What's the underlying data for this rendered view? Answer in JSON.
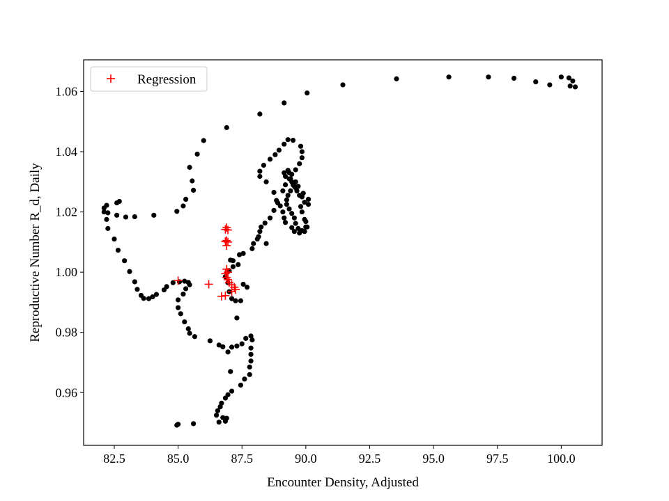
{
  "chart_data": {
    "type": "scatter",
    "title": "",
    "xlabel": "Encounter Density, Adjusted",
    "ylabel": "Reproductive Number R_d, Daily",
    "xlim": [
      81.3,
      101.6
    ],
    "ylim": [
      0.9425,
      1.0705
    ],
    "xticks": [
      82.5,
      85.0,
      87.5,
      90.0,
      92.5,
      95.0,
      97.5,
      100.0
    ],
    "xtick_labels": [
      "82.5",
      "85.0",
      "87.5",
      "90.0",
      "92.5",
      "95.0",
      "97.5",
      "100.0"
    ],
    "yticks": [
      0.96,
      0.98,
      1.0,
      1.02,
      1.04,
      1.06
    ],
    "ytick_labels": [
      "0.96",
      "0.98",
      "1.00",
      "1.02",
      "1.04",
      "1.06"
    ],
    "grid": false,
    "legend_position": "top-left",
    "series": [
      {
        "name": "",
        "marker": "dot",
        "color": "#000000",
        "points": [
          [
            100.55,
            1.0615
          ],
          [
            100.45,
            1.0635
          ],
          [
            100.3,
            1.0645
          ],
          [
            100.35,
            1.0618
          ],
          [
            100.0,
            1.0648
          ],
          [
            99.55,
            1.0622
          ],
          [
            99.0,
            1.0632
          ],
          [
            98.15,
            1.0644
          ],
          [
            97.15,
            1.0648
          ],
          [
            95.6,
            1.0648
          ],
          [
            93.55,
            1.0642
          ],
          [
            91.45,
            1.0622
          ],
          [
            90.05,
            1.0595
          ],
          [
            89.15,
            1.0562
          ],
          [
            88.2,
            1.0525
          ],
          [
            86.9,
            1.048
          ],
          [
            86.0,
            1.0437
          ],
          [
            85.75,
            1.0392
          ],
          [
            85.45,
            1.0348
          ],
          [
            85.55,
            1.0303
          ],
          [
            85.6,
            1.0272
          ],
          [
            85.3,
            1.0242
          ],
          [
            85.2,
            1.022
          ],
          [
            84.95,
            1.0202
          ],
          [
            84.05,
            1.0189
          ],
          [
            83.3,
            1.0184
          ],
          [
            82.95,
            1.0183
          ],
          [
            82.6,
            1.0189
          ],
          [
            82.25,
            1.0197
          ],
          [
            82.1,
            1.0213
          ],
          [
            82.2,
            1.0222
          ],
          [
            82.7,
            1.0235
          ],
          [
            82.6,
            1.023
          ],
          [
            82.1,
            1.02
          ],
          [
            82.2,
            1.0175
          ],
          [
            82.25,
            1.0145
          ],
          [
            82.5,
            1.011
          ],
          [
            82.65,
            1.0073
          ],
          [
            82.9,
            1.0038
          ],
          [
            83.1,
            1.0002
          ],
          [
            83.3,
            0.9968
          ],
          [
            83.4,
            0.9943
          ],
          [
            83.55,
            0.9923
          ],
          [
            83.65,
            0.9913
          ],
          [
            83.85,
            0.9912
          ],
          [
            84.0,
            0.9918
          ],
          [
            84.15,
            0.9926
          ],
          [
            84.45,
            0.9941
          ],
          [
            84.55,
            0.9952
          ],
          [
            84.8,
            0.9965
          ],
          [
            85.05,
            0.9968
          ],
          [
            85.25,
            0.997
          ],
          [
            85.4,
            0.9966
          ],
          [
            85.45,
            0.9958
          ],
          [
            85.3,
            0.9945
          ],
          [
            85.2,
            0.9927
          ],
          [
            85.0,
            0.9908
          ],
          [
            85.0,
            0.9882
          ],
          [
            85.1,
            0.9862
          ],
          [
            85.25,
            0.9835
          ],
          [
            85.4,
            0.9812
          ],
          [
            85.45,
            0.9797
          ],
          [
            85.65,
            0.9786
          ],
          [
            86.25,
            0.9772
          ],
          [
            86.6,
            0.9758
          ],
          [
            86.75,
            0.9752
          ],
          [
            87.1,
            0.9751
          ],
          [
            87.3,
            0.9755
          ],
          [
            87.5,
            0.9762
          ],
          [
            87.65,
            0.978
          ],
          [
            87.85,
            0.9788
          ],
          [
            87.9,
            0.9775
          ],
          [
            87.85,
            0.9748
          ],
          [
            87.85,
            0.9727
          ],
          [
            87.85,
            0.9705
          ],
          [
            87.8,
            0.9685
          ],
          [
            87.8,
            0.966
          ],
          [
            87.6,
            0.9645
          ],
          [
            87.45,
            0.9625
          ],
          [
            87.1,
            0.9605
          ],
          [
            86.95,
            0.9593
          ],
          [
            86.85,
            0.9582
          ],
          [
            86.7,
            0.9565
          ],
          [
            86.65,
            0.9553
          ],
          [
            86.55,
            0.954
          ],
          [
            86.5,
            0.9525
          ],
          [
            86.75,
            0.9517
          ],
          [
            86.85,
            0.9505
          ],
          [
            86.6,
            0.9502
          ],
          [
            85.6,
            0.9497
          ],
          [
            85.0,
            0.9495
          ],
          [
            84.95,
            0.9492
          ],
          [
            86.9,
            0.9515
          ],
          [
            87.05,
            0.967
          ],
          [
            86.95,
            0.9735
          ],
          [
            87.3,
            0.9848
          ],
          [
            87.45,
            0.9905
          ],
          [
            87.25,
            0.9905
          ],
          [
            87.1,
            0.9912
          ],
          [
            87.0,
            0.9935
          ],
          [
            86.95,
            0.9965
          ],
          [
            86.85,
            0.9985
          ],
          [
            87.0,
            1.0005
          ],
          [
            87.15,
            1.0018
          ],
          [
            87.35,
            1.0025
          ],
          [
            87.15,
            1.0038
          ],
          [
            87.05,
            1.004
          ],
          [
            87.4,
            1.0058
          ],
          [
            87.55,
            1.0062
          ],
          [
            87.9,
            1.0078
          ],
          [
            87.95,
            1.0095
          ],
          [
            88.1,
            1.011
          ],
          [
            88.2,
            1.0135
          ],
          [
            88.25,
            1.015
          ],
          [
            88.4,
            1.0163
          ],
          [
            88.6,
            1.018
          ],
          [
            88.75,
            1.0205
          ],
          [
            88.9,
            1.023
          ],
          [
            89.1,
            1.027
          ],
          [
            89.2,
            1.029
          ],
          [
            89.4,
            1.031
          ],
          [
            89.6,
            1.028
          ],
          [
            89.85,
            1.025
          ],
          [
            89.95,
            1.0232
          ],
          [
            90.1,
            1.0225
          ],
          [
            90.1,
            1.0242
          ],
          [
            89.9,
            1.0262
          ],
          [
            89.7,
            1.0285
          ],
          [
            89.45,
            1.03
          ],
          [
            89.35,
            1.033
          ],
          [
            89.6,
            1.034
          ],
          [
            89.75,
            1.036
          ],
          [
            89.85,
            1.038
          ],
          [
            89.85,
            1.04
          ],
          [
            89.8,
            1.0418
          ],
          [
            89.5,
            1.0438
          ],
          [
            89.3,
            1.044
          ],
          [
            89.15,
            1.0425
          ],
          [
            88.95,
            1.0405
          ],
          [
            88.8,
            1.039
          ],
          [
            88.6,
            1.0375
          ],
          [
            88.35,
            1.0355
          ],
          [
            88.2,
            1.0335
          ],
          [
            88.2,
            1.0318
          ],
          [
            88.45,
            1.03
          ],
          [
            88.75,
            1.0265
          ],
          [
            88.85,
            1.0238
          ],
          [
            89.0,
            1.022
          ],
          [
            89.1,
            1.02
          ],
          [
            89.15,
            1.018
          ],
          [
            89.2,
            1.0165
          ],
          [
            89.45,
            1.0148
          ],
          [
            89.55,
            1.0135
          ],
          [
            89.75,
            1.013
          ],
          [
            89.95,
            1.0135
          ],
          [
            90.0,
            1.015
          ],
          [
            89.95,
            1.0175
          ],
          [
            89.85,
            1.02
          ],
          [
            89.8,
            1.0218
          ],
          [
            89.75,
            1.0255
          ],
          [
            89.65,
            1.027
          ],
          [
            89.5,
            1.029
          ],
          [
            89.35,
            1.031
          ],
          [
            89.2,
            1.0318
          ],
          [
            89.15,
            1.033
          ],
          [
            89.3,
            1.0338
          ],
          [
            89.45,
            1.0325
          ],
          [
            89.6,
            1.03
          ],
          [
            89.55,
            1.0285
          ],
          [
            89.4,
            1.027
          ],
          [
            89.3,
            1.0255
          ],
          [
            89.25,
            1.024
          ],
          [
            89.25,
            1.0225
          ],
          [
            89.35,
            1.021
          ],
          [
            89.45,
            1.0195
          ],
          [
            89.55,
            1.018
          ],
          [
            89.6,
            1.0162
          ],
          [
            89.7,
            1.0145
          ],
          [
            89.85,
            1.0138
          ],
          [
            90.05,
            1.015
          ],
          [
            90.0,
            1.0168
          ],
          [
            88.45,
            1.0095
          ],
          [
            88.15,
            1.0118
          ],
          [
            87.7,
            0.995
          ],
          [
            87.55,
            0.996
          ]
        ]
      },
      {
        "name": "Regression",
        "marker": "plus",
        "color": "#ff0000",
        "points": [
          [
            86.9,
            1.0148
          ],
          [
            86.95,
            1.014
          ],
          [
            86.85,
            1.0142
          ],
          [
            86.9,
            1.0105
          ],
          [
            86.95,
            1.01
          ],
          [
            86.85,
            1.0102
          ],
          [
            86.9,
            1.0088
          ],
          [
            86.9,
            1.001
          ],
          [
            86.95,
            1.0
          ],
          [
            86.85,
            0.9995
          ],
          [
            86.9,
            0.9982
          ],
          [
            86.95,
            0.9975
          ],
          [
            87.0,
            0.9965
          ],
          [
            87.1,
            0.9958
          ],
          [
            87.2,
            0.995
          ],
          [
            87.25,
            0.9942
          ],
          [
            87.1,
            0.9935
          ],
          [
            86.7,
            0.992
          ],
          [
            86.85,
            0.9922
          ],
          [
            86.2,
            0.996
          ],
          [
            85.0,
            0.9972
          ]
        ]
      }
    ]
  }
}
